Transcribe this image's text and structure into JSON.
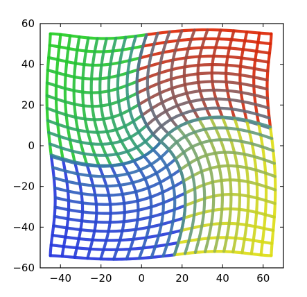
{
  "chart_data": {
    "type": "line",
    "title": "",
    "xlabel": "",
    "ylabel": "",
    "xlim": [
      -50,
      70
    ],
    "ylim": [
      -60,
      60
    ],
    "x_ticks": [
      -40,
      -20,
      0,
      20,
      40,
      60
    ],
    "y_ticks": [
      -60,
      -40,
      -20,
      0,
      20,
      40,
      60
    ],
    "x_tick_labels": [
      "−40",
      "−20",
      "0",
      "20",
      "40",
      "60"
    ],
    "y_tick_labels": [
      "−60",
      "−40",
      "−20",
      "0",
      "20",
      "40",
      "60"
    ],
    "grid": false,
    "legend": "none",
    "center": [
      9.5,
      2
    ],
    "series": [
      {
        "color": "#22cc22",
        "corners": [
          [
            -45,
            55
          ],
          [
            9.5,
            2
          ],
          [
            -45,
            2
          ],
          [
            9.5,
            55
          ]
        ],
        "outer_corner": [
          -45,
          55
        ],
        "grid_divisions": 10
      },
      {
        "color": "#dd2200",
        "corners": [
          [
            64,
            55
          ],
          [
            9.5,
            2
          ],
          [
            64,
            2
          ],
          [
            9.5,
            55
          ]
        ],
        "outer_corner": [
          64,
          55
        ],
        "grid_divisions": 10
      },
      {
        "color": "#2233dd",
        "corners": [
          [
            -45,
            -54
          ],
          [
            9.5,
            2
          ],
          [
            -45,
            2
          ],
          [
            9.5,
            -54
          ]
        ],
        "outer_corner": [
          -45,
          -54
        ],
        "grid_divisions": 10
      },
      {
        "color": "#dddd11",
        "corners": [
          [
            64,
            -54
          ],
          [
            9.5,
            2
          ],
          [
            64,
            2
          ],
          [
            9.5,
            -54
          ]
        ],
        "outer_corner": [
          64,
          -54
        ],
        "grid_divisions": 10
      }
    ]
  }
}
